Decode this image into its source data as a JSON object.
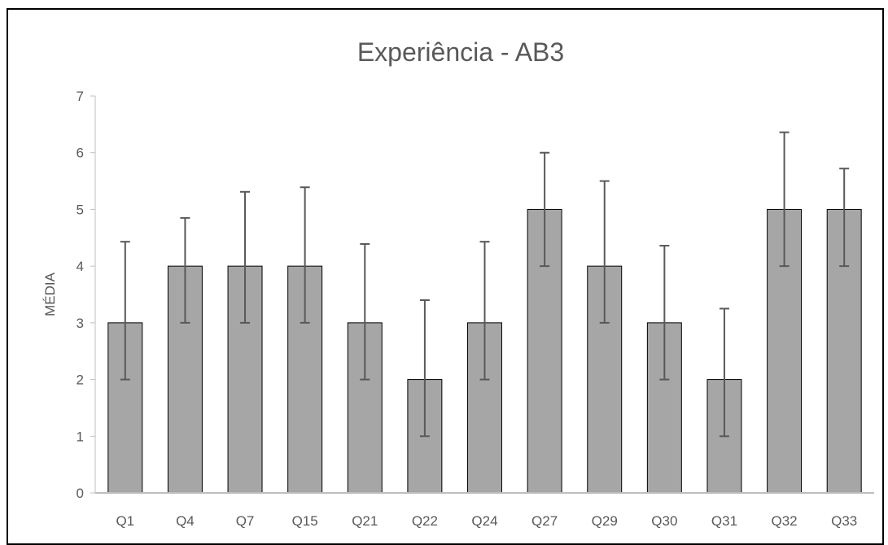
{
  "chart_data": {
    "type": "bar",
    "title": "Experiência - AB3",
    "xlabel": "",
    "ylabel": "MÉDIA",
    "ylim": [
      0,
      7
    ],
    "yticks": [
      0,
      1,
      2,
      3,
      4,
      5,
      6,
      7
    ],
    "grid": false,
    "categories": [
      "Q1",
      "Q4",
      "Q7",
      "Q15",
      "Q21",
      "Q22",
      "Q24",
      "Q27",
      "Q29",
      "Q30",
      "Q31",
      "Q32",
      "Q33"
    ],
    "values": [
      3,
      4,
      4,
      4,
      3,
      2,
      3,
      5,
      4,
      3,
      2,
      5,
      5
    ],
    "error_low": [
      2,
      3,
      3,
      3,
      2,
      1,
      2,
      4,
      3,
      2,
      1,
      4,
      4
    ],
    "error_high": [
      4.43,
      4.85,
      5.31,
      5.39,
      4.39,
      3.4,
      4.43,
      6.0,
      5.5,
      4.36,
      3.25,
      6.36,
      5.72
    ],
    "colors": {
      "bar_fill": "#a6a6a6",
      "bar_stroke": "#000000",
      "error_bar": "#595959",
      "axis": "#bfbfbf",
      "text": "#595959"
    }
  }
}
